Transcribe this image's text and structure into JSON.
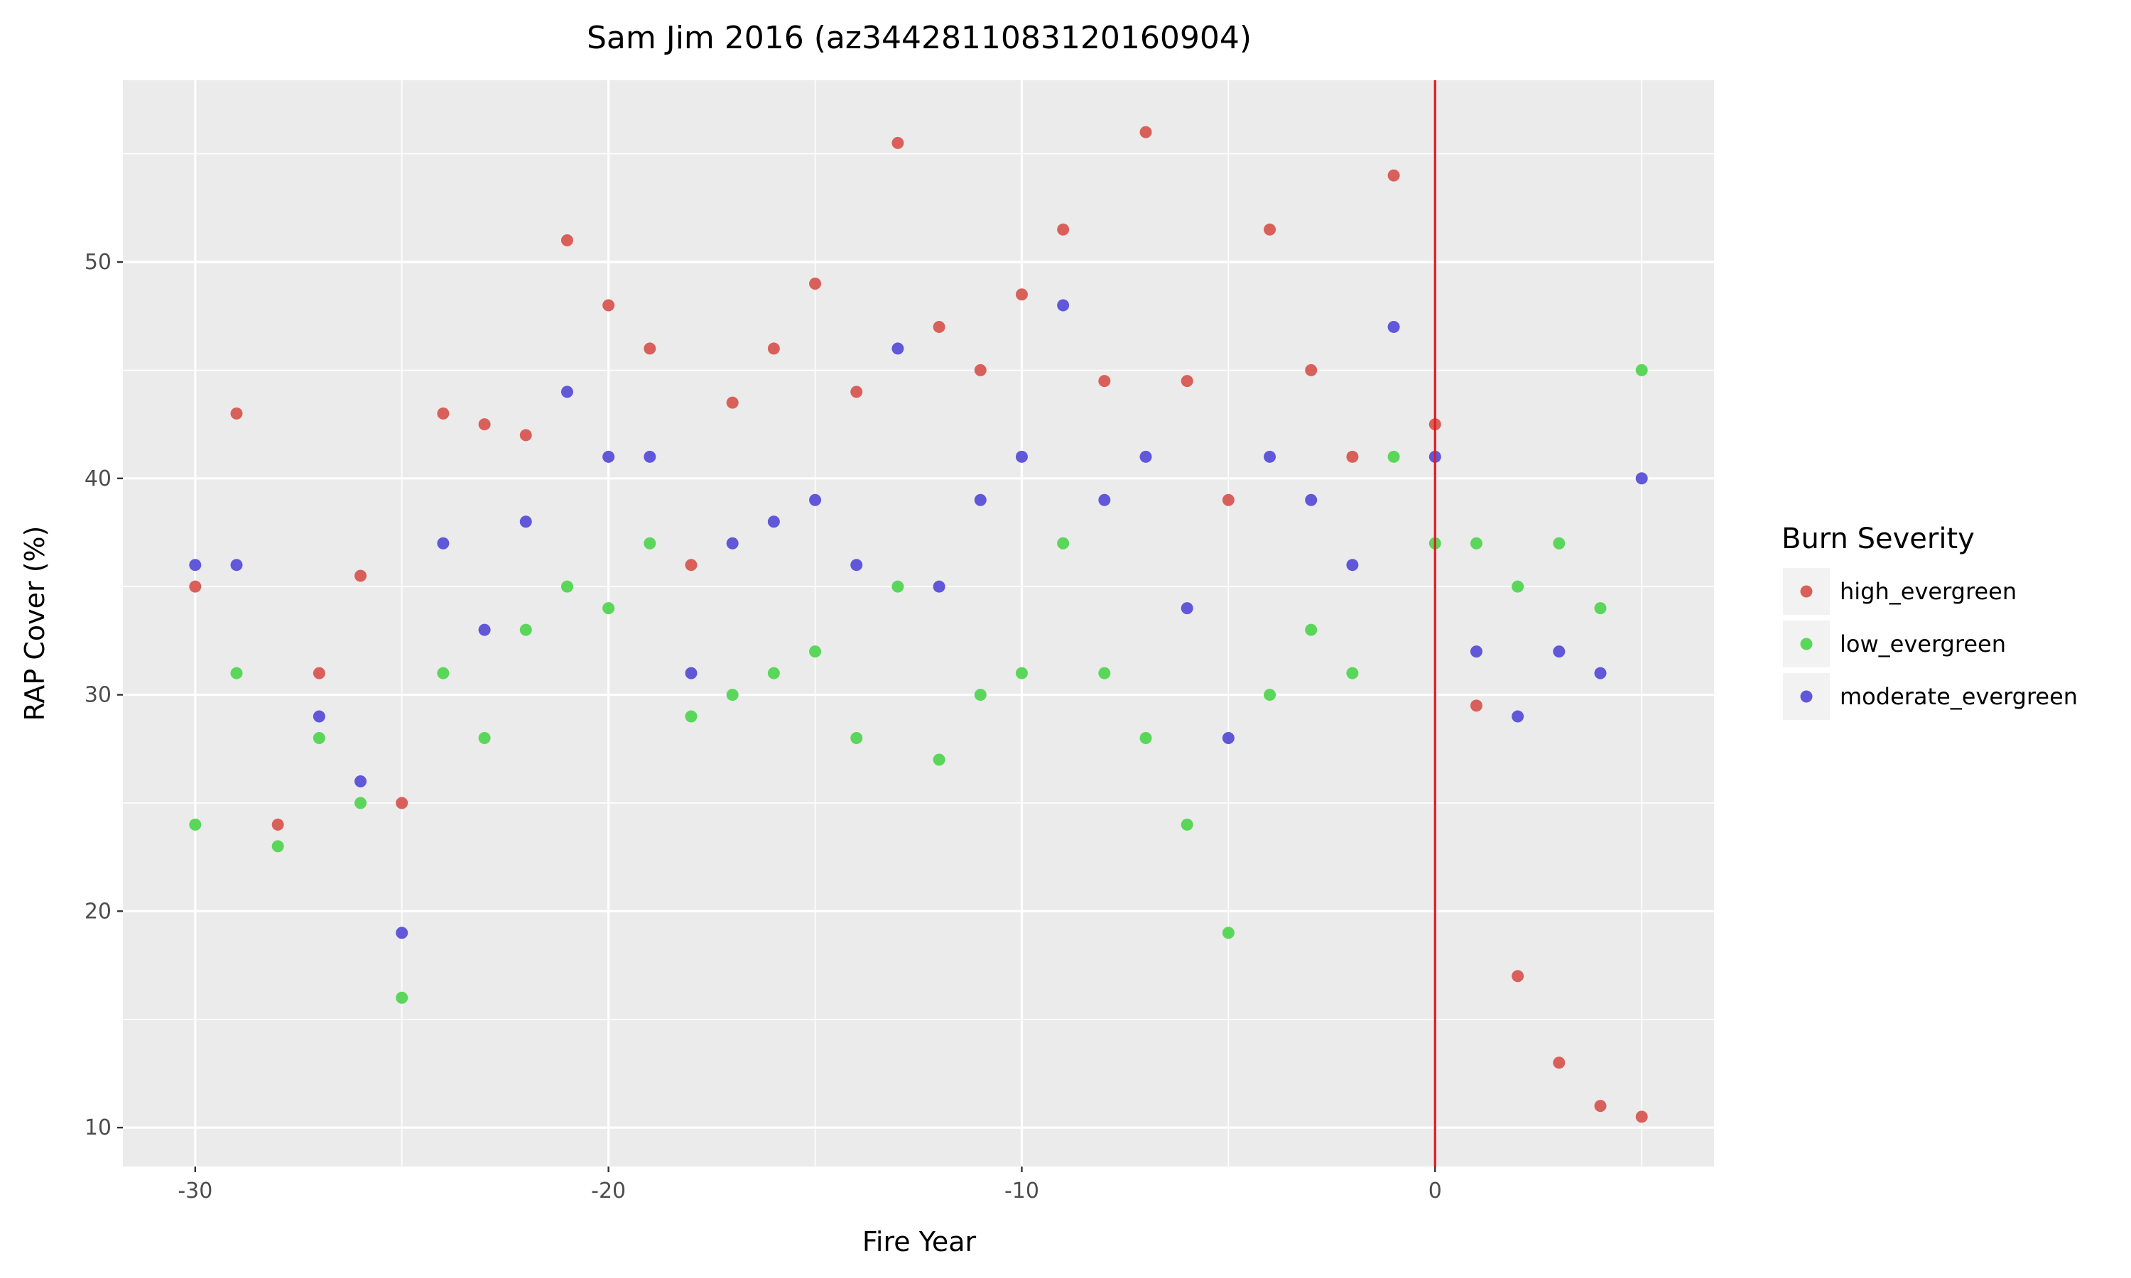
{
  "chart_data": {
    "type": "scatter",
    "title": "Sam Jim 2016 (az3442811083120160904)",
    "xlabel": "Fire Year",
    "ylabel": "RAP Cover (%)",
    "xlim": [
      -31.75,
      6.75
    ],
    "ylim": [
      8.2,
      58.4
    ],
    "x_ticks": [
      -30,
      -20,
      -10,
      0
    ],
    "x_tick_labels": [
      "-30",
      "-20",
      "-10",
      "0"
    ],
    "y_ticks": [
      10,
      20,
      30,
      40,
      50
    ],
    "y_tick_labels": [
      "10",
      "20",
      "30",
      "40",
      "50"
    ],
    "grid": true,
    "background": "#ebebeb",
    "reference_line": {
      "x": 0,
      "color": "#e41a1c"
    },
    "legend": {
      "title": "Burn Severity",
      "position": "right"
    },
    "series": [
      {
        "name": "high_evergreen",
        "color": "#d9605a",
        "points": [
          [
            -30,
            35
          ],
          [
            -29,
            43
          ],
          [
            -28,
            24
          ],
          [
            -27,
            31
          ],
          [
            -26,
            35.5
          ],
          [
            -25,
            25
          ],
          [
            -24,
            43
          ],
          [
            -23,
            42.5
          ],
          [
            -22,
            42
          ],
          [
            -21,
            51
          ],
          [
            -20,
            48
          ],
          [
            -19,
            46
          ],
          [
            -18,
            36
          ],
          [
            -17,
            43.5
          ],
          [
            -16,
            46
          ],
          [
            -15,
            49
          ],
          [
            -14,
            44
          ],
          [
            -13,
            55.5
          ],
          [
            -12,
            47
          ],
          [
            -11,
            45
          ],
          [
            -10,
            48.5
          ],
          [
            -9,
            51.5
          ],
          [
            -8,
            44.5
          ],
          [
            -7,
            56
          ],
          [
            -6,
            44.5
          ],
          [
            -5,
            39
          ],
          [
            -4,
            51.5
          ],
          [
            -3,
            45
          ],
          [
            -2,
            41
          ],
          [
            -1,
            54
          ],
          [
            0,
            42.5
          ],
          [
            1,
            29.5
          ],
          [
            2,
            17
          ],
          [
            3,
            13
          ],
          [
            4,
            11
          ],
          [
            5,
            10.5
          ]
        ]
      },
      {
        "name": "low_evergreen",
        "color": "#5ad75a",
        "points": [
          [
            -30,
            24
          ],
          [
            -29,
            31
          ],
          [
            -28,
            23
          ],
          [
            -27,
            28
          ],
          [
            -26,
            25
          ],
          [
            -25,
            16
          ],
          [
            -24,
            31
          ],
          [
            -23,
            28
          ],
          [
            -22,
            33
          ],
          [
            -21,
            35
          ],
          [
            -20,
            34
          ],
          [
            -19,
            37
          ],
          [
            -18,
            29
          ],
          [
            -17,
            30
          ],
          [
            -16,
            31
          ],
          [
            -15,
            32
          ],
          [
            -14,
            28
          ],
          [
            -13,
            35
          ],
          [
            -12,
            27
          ],
          [
            -11,
            30
          ],
          [
            -10,
            31
          ],
          [
            -9,
            37
          ],
          [
            -8,
            31
          ],
          [
            -7,
            28
          ],
          [
            -6,
            24
          ],
          [
            -5,
            19
          ],
          [
            -4,
            30
          ],
          [
            -3,
            33
          ],
          [
            -2,
            31
          ],
          [
            -1,
            41
          ],
          [
            0,
            37
          ],
          [
            1,
            37
          ],
          [
            2,
            35
          ],
          [
            3,
            37
          ],
          [
            4,
            34
          ],
          [
            5,
            45
          ]
        ]
      },
      {
        "name": "moderate_evergreen",
        "color": "#6057d9",
        "points": [
          [
            -30,
            36
          ],
          [
            -29,
            36
          ],
          [
            -27,
            29
          ],
          [
            -26,
            26
          ],
          [
            -25,
            19
          ],
          [
            -24,
            37
          ],
          [
            -23,
            33
          ],
          [
            -22,
            38
          ],
          [
            -21,
            44
          ],
          [
            -20,
            41
          ],
          [
            -19,
            41
          ],
          [
            -18,
            31
          ],
          [
            -17,
            37
          ],
          [
            -16,
            38
          ],
          [
            -15,
            39
          ],
          [
            -14,
            36
          ],
          [
            -13,
            46
          ],
          [
            -12,
            35
          ],
          [
            -11,
            39
          ],
          [
            -10,
            41
          ],
          [
            -9,
            48
          ],
          [
            -8,
            39
          ],
          [
            -7,
            41
          ],
          [
            -6,
            34
          ],
          [
            -5,
            28
          ],
          [
            -4,
            41
          ],
          [
            -3,
            39
          ],
          [
            -2,
            36
          ],
          [
            -1,
            47
          ],
          [
            0,
            41
          ],
          [
            1,
            32
          ],
          [
            2,
            29
          ],
          [
            3,
            32
          ],
          [
            4,
            31
          ],
          [
            5,
            40
          ]
        ]
      }
    ]
  }
}
